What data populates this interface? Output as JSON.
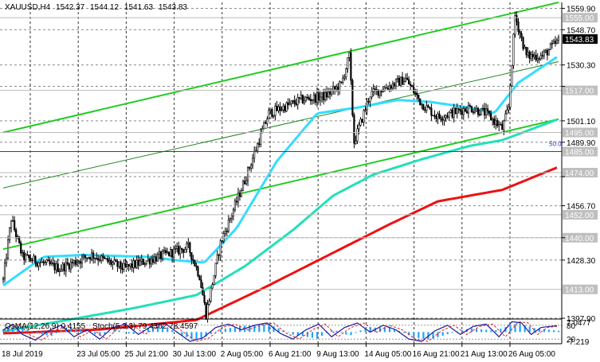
{
  "header": {
    "symbol": "XAUUSD,H4",
    "open": "1542.37",
    "high": "1544.12",
    "low": "1541.63",
    "close": "1543.83"
  },
  "chart_data": [
    {
      "type": "candlestick",
      "title": "XAUUSD,H4",
      "y_ticks": [
        "1559.90",
        "1548.70",
        "1530.30",
        "1519.10",
        "1501.10",
        "1489.90",
        "1471.90",
        "1456.70",
        "1440.00",
        "1428.30",
        "1397.90"
      ],
      "y_range": [
        1397.9,
        1563.0
      ],
      "level_labels": [
        "1555.00",
        "1517.00",
        "1495.00",
        "1485.00",
        "1474.00",
        "1452.00",
        "1440.00",
        "1413.00"
      ],
      "level_values": [
        1555,
        1517,
        1495,
        1485,
        1474,
        1452,
        1440,
        1413
      ],
      "current_price_label": "1543.83",
      "fib_label": "50.0",
      "x_labels": [
        "18 Jul 2019",
        "23 Jul 05:00",
        "25 Jul 21:00",
        "30 Jul 13:00",
        "2 Aug 05:00",
        "6 Aug 21:00",
        "9 Aug 13:00",
        "14 Aug 05:00",
        "16 Aug 21:00",
        "21 Aug 13:00",
        "26 Aug 05:00"
      ],
      "price_anchors": [
        [
          0,
          1418
        ],
        [
          5,
          1450
        ],
        [
          12,
          1430
        ],
        [
          35,
          1424
        ],
        [
          55,
          1431
        ],
        [
          75,
          1424
        ],
        [
          100,
          1431
        ],
        [
          115,
          1435
        ],
        [
          122,
          1420
        ],
        [
          126,
          1400
        ],
        [
          135,
          1437
        ],
        [
          150,
          1470
        ],
        [
          165,
          1505
        ],
        [
          185,
          1512
        ],
        [
          200,
          1514
        ],
        [
          210,
          1520
        ],
        [
          215,
          1535
        ],
        [
          218,
          1490
        ],
        [
          228,
          1515
        ],
        [
          250,
          1523
        ],
        [
          260,
          1510
        ],
        [
          270,
          1503
        ],
        [
          290,
          1508
        ],
        [
          300,
          1505
        ],
        [
          310,
          1497
        ],
        [
          314,
          1508
        ],
        [
          318,
          1556
        ],
        [
          325,
          1535
        ],
        [
          335,
          1535
        ],
        [
          345,
          1543
        ]
      ],
      "moving_averages": [
        {
          "color": "#33ddff",
          "values": [
            [
              0,
              1415
            ],
            [
              25,
              1430
            ],
            [
              50,
              1431
            ],
            [
              90,
              1430
            ],
            [
              110,
              1428
            ],
            [
              125,
              1427
            ],
            [
              145,
              1445
            ],
            [
              170,
              1480
            ],
            [
              195,
              1505
            ],
            [
              220,
              1508
            ],
            [
              245,
              1512
            ],
            [
              265,
              1511
            ],
            [
              290,
              1508
            ],
            [
              305,
              1505
            ],
            [
              320,
              1521
            ],
            [
              345,
              1535
            ]
          ]
        },
        {
          "color": "#22e0b8",
          "values": [
            [
              0,
              1391
            ],
            [
              40,
              1397
            ],
            [
              80,
              1403
            ],
            [
              120,
              1410
            ],
            [
              150,
              1425
            ],
            [
              180,
              1444
            ],
            [
              205,
              1462
            ],
            [
              230,
              1473
            ],
            [
              260,
              1481
            ],
            [
              290,
              1488
            ],
            [
              310,
              1491
            ],
            [
              345,
              1502
            ]
          ]
        },
        {
          "color": "#ee1111",
          "values": [
            [
              0,
              1390
            ],
            [
              60,
              1392
            ],
            [
              120,
              1397
            ],
            [
              160,
              1413
            ],
            [
              200,
              1430
            ],
            [
              240,
              1447
            ],
            [
              270,
              1459
            ],
            [
              310,
              1465
            ],
            [
              345,
              1477
            ]
          ]
        }
      ],
      "channel_lines": [
        {
          "color": "#22cc22",
          "points": [
            [
              0,
              1495
            ],
            [
              345,
              1563
            ]
          ]
        },
        {
          "color": "#22cc22",
          "points": [
            [
              0,
              1434
            ],
            [
              345,
              1502
            ]
          ]
        },
        {
          "color": "#228822",
          "points": [
            [
              0,
              1466
            ],
            [
              345,
              1532
            ]
          ]
        }
      ],
      "indicator": {
        "osma_label": "OsMA(12,26,9) 0.4155",
        "stoch_label": "Stoch(5,3,3) 79.4302 78.4597",
        "scale_labels": [
          "7.0477",
          "80",
          "20",
          "-7.219"
        ],
        "osma_anchors": [
          [
            0,
            2
          ],
          [
            10,
            5
          ],
          [
            20,
            -1
          ],
          [
            30,
            -3
          ],
          [
            40,
            4
          ],
          [
            50,
            1
          ],
          [
            60,
            -3
          ],
          [
            70,
            2
          ],
          [
            80,
            -2
          ],
          [
            90,
            3
          ],
          [
            100,
            5
          ],
          [
            110,
            -2
          ],
          [
            118,
            -6
          ],
          [
            125,
            -4
          ],
          [
            135,
            2
          ],
          [
            150,
            5
          ],
          [
            165,
            6
          ],
          [
            180,
            -2
          ],
          [
            195,
            -5
          ],
          [
            205,
            2
          ],
          [
            215,
            -3
          ],
          [
            225,
            3
          ],
          [
            240,
            4
          ],
          [
            255,
            -4
          ],
          [
            265,
            -6
          ],
          [
            275,
            -2
          ],
          [
            290,
            3
          ],
          [
            305,
            1
          ],
          [
            315,
            5
          ],
          [
            320,
            7
          ],
          [
            330,
            3
          ],
          [
            345,
            1
          ]
        ],
        "stoch_main_anchors": [
          [
            0,
            60
          ],
          [
            6,
            85
          ],
          [
            12,
            40
          ],
          [
            20,
            15
          ],
          [
            28,
            55
          ],
          [
            36,
            80
          ],
          [
            44,
            30
          ],
          [
            52,
            60
          ],
          [
            60,
            20
          ],
          [
            68,
            70
          ],
          [
            76,
            85
          ],
          [
            84,
            40
          ],
          [
            92,
            75
          ],
          [
            100,
            90
          ],
          [
            108,
            50
          ],
          [
            116,
            10
          ],
          [
            124,
            25
          ],
          [
            132,
            70
          ],
          [
            140,
            85
          ],
          [
            148,
            60
          ],
          [
            156,
            80
          ],
          [
            164,
            90
          ],
          [
            172,
            45
          ],
          [
            180,
            20
          ],
          [
            188,
            60
          ],
          [
            196,
            85
          ],
          [
            204,
            30
          ],
          [
            212,
            70
          ],
          [
            220,
            90
          ],
          [
            228,
            50
          ],
          [
            236,
            80
          ],
          [
            244,
            60
          ],
          [
            252,
            20
          ],
          [
            260,
            10
          ],
          [
            268,
            55
          ],
          [
            276,
            80
          ],
          [
            284,
            40
          ],
          [
            292,
            75
          ],
          [
            300,
            85
          ],
          [
            308,
            30
          ],
          [
            316,
            95
          ],
          [
            322,
            90
          ],
          [
            328,
            40
          ],
          [
            334,
            70
          ],
          [
            340,
            75
          ],
          [
            345,
            79
          ]
        ]
      }
    }
  ]
}
